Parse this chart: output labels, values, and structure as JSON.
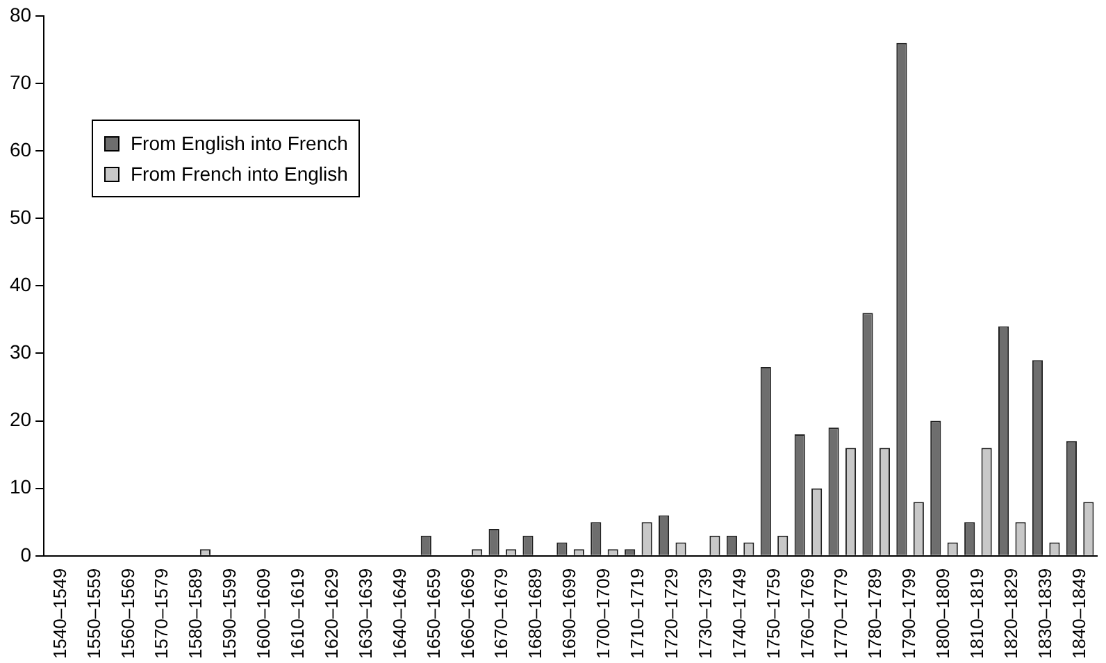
{
  "chart_data": {
    "type": "bar",
    "categories": [
      "1540–1549",
      "1550–1559",
      "1560–1569",
      "1570–1579",
      "1580–1589",
      "1590–1599",
      "1600–1609",
      "1610–1619",
      "1620–1629",
      "1630–1639",
      "1640–1649",
      "1650–1659",
      "1660–1669",
      "1670–1679",
      "1680–1689",
      "1690–1699",
      "1700–1709",
      "1710–1719",
      "1720–1729",
      "1730–1739",
      "1740–1749",
      "1750–1759",
      "1760–1769",
      "1770–1779",
      "1780–1789",
      "1790–1799",
      "1800–1809",
      "1810–1819",
      "1820–1829",
      "1830–1839",
      "1840–1849"
    ],
    "series": [
      {
        "name": "From English into French",
        "color": "#6e6e6e",
        "values": [
          0,
          0,
          0,
          0,
          0,
          0,
          0,
          0,
          0,
          0,
          0,
          3,
          0,
          4,
          3,
          2,
          5,
          1,
          6,
          0,
          3,
          28,
          18,
          19,
          36,
          76,
          20,
          5,
          34,
          29,
          17
        ]
      },
      {
        "name": "From French into English",
        "color": "#c8c8c8",
        "values": [
          0,
          0,
          0,
          0,
          1,
          0,
          0,
          0,
          0,
          0,
          0,
          0,
          1,
          1,
          0,
          1,
          1,
          5,
          2,
          3,
          2,
          3,
          10,
          16,
          16,
          8,
          2,
          16,
          5,
          2,
          8
        ]
      }
    ],
    "ylim": [
      0,
      80
    ],
    "yticks": [
      0,
      10,
      20,
      30,
      40,
      50,
      60,
      70,
      80
    ],
    "grid": false,
    "legend": "top left"
  }
}
